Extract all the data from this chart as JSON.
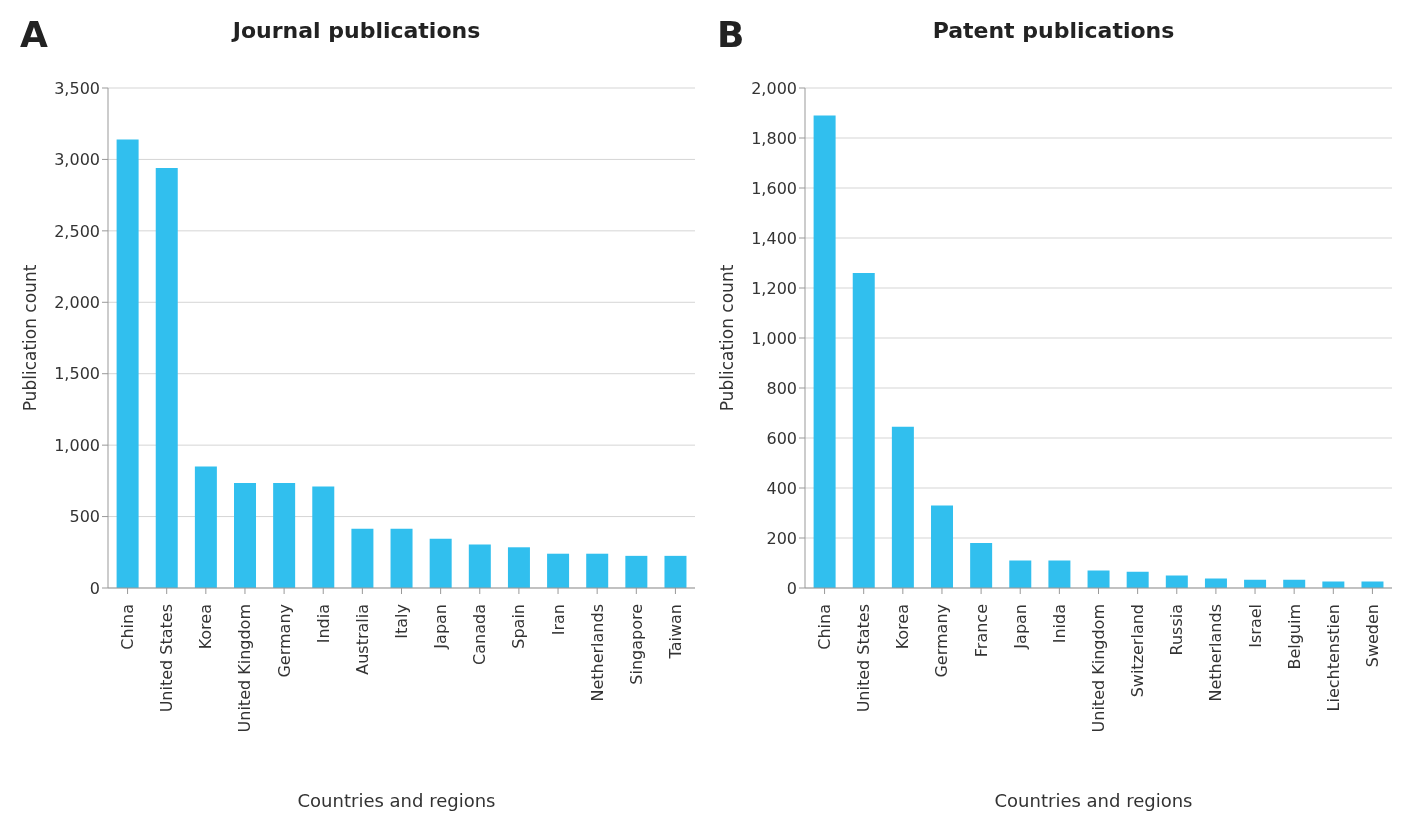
{
  "chart_data": [
    {
      "type": "bar",
      "title": "Journal publications",
      "xlabel": "Countries and regions",
      "ylabel": "Publication count",
      "annotations": [
        "A"
      ],
      "categories": [
        "China",
        "United States",
        "Korea",
        "United Kingdom",
        "Germany",
        "India",
        "Australia",
        "Italy",
        "Japan",
        "Canada",
        "Spain",
        "Iran",
        "Netherlands",
        "Singapore",
        "Taiwan"
      ],
      "values": [
        3140,
        2940,
        850,
        735,
        735,
        710,
        415,
        415,
        345,
        305,
        285,
        240,
        240,
        225,
        225
      ],
      "color": "#31bfee",
      "ylim": [
        0,
        3500
      ],
      "yticks": [
        0,
        500,
        {
          "value": 1000,
          "label": "1,000"
        },
        {
          "value": 1500,
          "label": "1,500"
        },
        {
          "value": 2000,
          "label": "2,000"
        },
        {
          "value": 2500,
          "label": "2,500"
        },
        {
          "value": 3000,
          "label": "3,000"
        },
        {
          "value": 3500,
          "label": "3,500"
        }
      ],
      "grid": "y",
      "legend": false
    },
    {
      "type": "bar",
      "title": "Patent publications",
      "xlabel": "Countries and regions",
      "ylabel": "Publication count",
      "annotations": [
        "B"
      ],
      "categories": [
        "China",
        "United States",
        "Korea",
        "Germany",
        "France",
        "Japan",
        "Inida",
        "United Kingdom",
        "Switzerland",
        "Russia",
        "Netherlands",
        "Israel",
        "Belguim",
        "Liechtenstien",
        "Sweden"
      ],
      "values": [
        1890,
        1260,
        645,
        330,
        180,
        110,
        110,
        70,
        65,
        50,
        38,
        33,
        33,
        26,
        26
      ],
      "color": "#31bfee",
      "ylim": [
        0,
        2000
      ],
      "yticks": [
        0,
        200,
        400,
        600,
        800,
        {
          "value": 1000,
          "label": "1,000"
        },
        {
          "value": 1200,
          "label": "1,200"
        },
        {
          "value": 1400,
          "label": "1,400"
        },
        {
          "value": 1600,
          "label": "1,600"
        },
        {
          "value": 1800,
          "label": "1,800"
        },
        {
          "value": 2000,
          "label": "2,000"
        }
      ],
      "grid": "y",
      "legend": false
    }
  ]
}
